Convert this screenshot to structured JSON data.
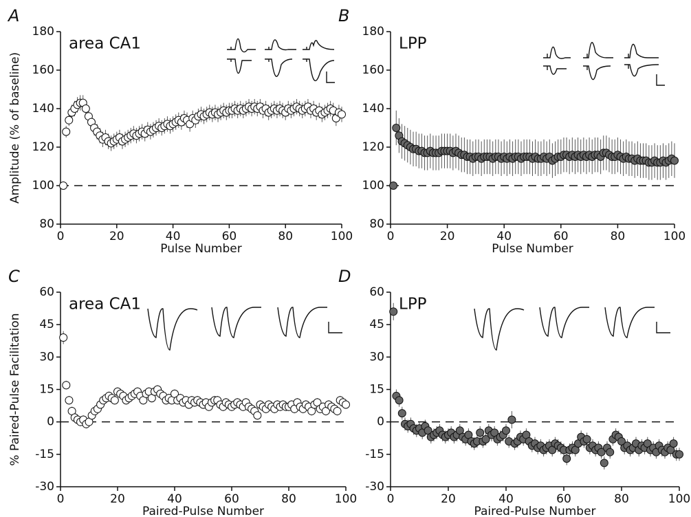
{
  "chart_data": [
    {
      "type": "scatter",
      "panel_label": "A",
      "title": "area CA1",
      "xlabel": "Pulse Number",
      "ylabel": "Amplitude (% of baseline)",
      "xlim": [
        0,
        100
      ],
      "xticks": [
        0,
        20,
        40,
        60,
        80,
        100
      ],
      "ylim": [
        80,
        180
      ],
      "yticks": [
        80,
        100,
        120,
        140,
        160,
        180
      ],
      "reference_line": 100,
      "marker_fill": "#ffffff",
      "marker_edge": "#111111",
      "x": [
        1,
        2,
        3,
        4,
        5,
        6,
        7,
        8,
        9,
        10,
        11,
        12,
        13,
        14,
        15,
        16,
        17,
        18,
        19,
        20,
        21,
        22,
        23,
        24,
        25,
        26,
        27,
        28,
        29,
        30,
        31,
        32,
        33,
        34,
        35,
        36,
        37,
        38,
        39,
        40,
        41,
        42,
        43,
        44,
        45,
        46,
        47,
        48,
        49,
        50,
        51,
        52,
        53,
        54,
        55,
        56,
        57,
        58,
        59,
        60,
        61,
        62,
        63,
        64,
        65,
        66,
        67,
        68,
        69,
        70,
        71,
        72,
        73,
        74,
        75,
        76,
        77,
        78,
        79,
        80,
        81,
        82,
        83,
        84,
        85,
        86,
        87,
        88,
        89,
        90,
        91,
        92,
        93,
        94,
        95,
        96,
        97,
        98,
        99,
        100
      ],
      "values": [
        100,
        128,
        134,
        138,
        140,
        142,
        143,
        143,
        140,
        136,
        133,
        130,
        128,
        126,
        124,
        125,
        123,
        122,
        123,
        124,
        125,
        123,
        124,
        125,
        126,
        127,
        126,
        127,
        128,
        127,
        129,
        128,
        129,
        130,
        131,
        130,
        131,
        132,
        131,
        132,
        133,
        134,
        133,
        135,
        134,
        132,
        135,
        134,
        136,
        137,
        136,
        137,
        138,
        137,
        138,
        137,
        138,
        139,
        138,
        139,
        139,
        140,
        139,
        140,
        139,
        140,
        141,
        140,
        141,
        140,
        141,
        139,
        140,
        138,
        139,
        140,
        139,
        140,
        139,
        138,
        140,
        139,
        140,
        141,
        140,
        139,
        140,
        141,
        139,
        140,
        138,
        139,
        137,
        138,
        139,
        140,
        139,
        135,
        138,
        137
      ],
      "errors": [
        0,
        3,
        3,
        4,
        4,
        4,
        4,
        4,
        4,
        4,
        4,
        4,
        4,
        4,
        4,
        4,
        4,
        4,
        4,
        4,
        4,
        4,
        4,
        4,
        4,
        4,
        4,
        4,
        4,
        4,
        4,
        4,
        4,
        4,
        4,
        4,
        4,
        4,
        4,
        4,
        4,
        4,
        4,
        4,
        4,
        4,
        4,
        4,
        4,
        4,
        4,
        4,
        4,
        4,
        4,
        4,
        4,
        4,
        4,
        4,
        4,
        4,
        4,
        4,
        4,
        4,
        4,
        4,
        4,
        4,
        4,
        4,
        4,
        4,
        4,
        4,
        4,
        4,
        4,
        4,
        4,
        4,
        4,
        4,
        4,
        4,
        4,
        4,
        4,
        4,
        4,
        4,
        4,
        4,
        4,
        4,
        4,
        4,
        4,
        4
      ]
    },
    {
      "type": "scatter",
      "panel_label": "B",
      "title": "LPP",
      "xlabel": "Pulse Number",
      "xlim": [
        0,
        100
      ],
      "xticks": [
        0,
        20,
        40,
        60,
        80,
        100
      ],
      "ylim": [
        80,
        180
      ],
      "yticks": [
        80,
        100,
        120,
        140,
        160,
        180
      ],
      "reference_line": 100,
      "marker_fill": "#666666",
      "marker_edge": "#111111",
      "x": [
        1,
        2,
        3,
        4,
        5,
        6,
        7,
        8,
        9,
        10,
        11,
        12,
        13,
        14,
        15,
        16,
        17,
        18,
        19,
        20,
        21,
        22,
        23,
        24,
        25,
        26,
        27,
        28,
        29,
        30,
        31,
        32,
        33,
        34,
        35,
        36,
        37,
        38,
        39,
        40,
        41,
        42,
        43,
        44,
        45,
        46,
        47,
        48,
        49,
        50,
        51,
        52,
        53,
        54,
        55,
        56,
        57,
        58,
        59,
        60,
        61,
        62,
        63,
        64,
        65,
        66,
        67,
        68,
        69,
        70,
        71,
        72,
        73,
        74,
        75,
        76,
        77,
        78,
        79,
        80,
        81,
        82,
        83,
        84,
        85,
        86,
        87,
        88,
        89,
        90,
        91,
        92,
        93,
        94,
        95,
        96,
        97,
        98,
        99,
        100
      ],
      "values": [
        100,
        130,
        126,
        123,
        122,
        121,
        120,
        119,
        119,
        118,
        118,
        117,
        117,
        118,
        117,
        117,
        117,
        118,
        118,
        118,
        118,
        117,
        118,
        117,
        116,
        116,
        115,
        115,
        114,
        115,
        115,
        114,
        115,
        115,
        115,
        114,
        115,
        115,
        114,
        115,
        114,
        115,
        114,
        115,
        115,
        114,
        115,
        115,
        115,
        114,
        115,
        114,
        114,
        115,
        114,
        115,
        113,
        114,
        115,
        115,
        116,
        116,
        115,
        116,
        115,
        116,
        115,
        116,
        115,
        116,
        115,
        116,
        116,
        115,
        117,
        117,
        116,
        115,
        115,
        116,
        115,
        114,
        115,
        114,
        114,
        113,
        114,
        113,
        113,
        113,
        112,
        112,
        113,
        112,
        112,
        113,
        112,
        113,
        114,
        113
      ],
      "errors": [
        0,
        9,
        9,
        9,
        9,
        9,
        9,
        9,
        9,
        9,
        9,
        9,
        9,
        9,
        9,
        9,
        9,
        9,
        9,
        9,
        9,
        9,
        9,
        9,
        9,
        9,
        9,
        9,
        9,
        9,
        9,
        9,
        9,
        9,
        9,
        9,
        9,
        9,
        9,
        9,
        9,
        9,
        9,
        9,
        9,
        9,
        9,
        9,
        9,
        9,
        9,
        9,
        9,
        9,
        9,
        9,
        9,
        9,
        9,
        9,
        9,
        9,
        9,
        9,
        9,
        9,
        9,
        9,
        9,
        9,
        9,
        9,
        9,
        9,
        9,
        9,
        9,
        9,
        9,
        9,
        9,
        9,
        9,
        9,
        9,
        9,
        9,
        9,
        9,
        9,
        9,
        9,
        9,
        9,
        9,
        9,
        9,
        9,
        9,
        9
      ]
    },
    {
      "type": "scatter",
      "panel_label": "C",
      "title": "area CA1",
      "xlabel": "Paired-Pulse Number",
      "ylabel": "% Paired-Pulse Facilitation",
      "xlim": [
        0,
        100
      ],
      "xticks": [
        0,
        20,
        40,
        60,
        80,
        100
      ],
      "ylim": [
        -30,
        60
      ],
      "yticks": [
        -30,
        -15,
        0,
        15,
        30,
        45,
        60
      ],
      "reference_line": 0,
      "marker_fill": "#ffffff",
      "marker_edge": "#111111",
      "x": [
        1,
        2,
        3,
        4,
        5,
        6,
        7,
        8,
        9,
        10,
        11,
        12,
        13,
        14,
        15,
        16,
        17,
        18,
        19,
        20,
        21,
        22,
        23,
        24,
        25,
        26,
        27,
        28,
        29,
        30,
        31,
        32,
        33,
        34,
        35,
        36,
        37,
        38,
        39,
        40,
        41,
        42,
        43,
        44,
        45,
        46,
        47,
        48,
        49,
        50,
        51,
        52,
        53,
        54,
        55,
        56,
        57,
        58,
        59,
        60,
        61,
        62,
        63,
        64,
        65,
        66,
        67,
        68,
        69,
        70,
        71,
        72,
        73,
        74,
        75,
        76,
        77,
        78,
        79,
        80,
        81,
        82,
        83,
        84,
        85,
        86,
        87,
        88,
        89,
        90,
        91,
        92,
        93,
        94,
        95,
        96,
        97,
        98,
        99,
        100
      ],
      "values": [
        39,
        17,
        10,
        5,
        2,
        1,
        0,
        1,
        -1,
        0,
        3,
        5,
        6,
        8,
        10,
        11,
        12,
        11,
        10,
        14,
        13,
        12,
        10,
        11,
        12,
        13,
        14,
        12,
        10,
        13,
        14,
        11,
        14,
        15,
        13,
        12,
        10,
        11,
        10,
        13,
        10,
        11,
        9,
        10,
        8,
        10,
        9,
        10,
        9,
        8,
        9,
        7,
        9,
        10,
        10,
        8,
        7,
        9,
        8,
        7,
        8,
        9,
        8,
        7,
        9,
        7,
        6,
        5,
        3,
        8,
        7,
        6,
        8,
        7,
        6,
        8,
        7,
        8,
        7,
        7,
        8,
        6,
        9,
        7,
        6,
        8,
        7,
        5,
        8,
        9,
        6,
        7,
        5,
        8,
        7,
        6,
        5,
        10,
        9,
        8
      ],
      "errors": [
        3,
        2,
        2,
        2,
        2,
        2,
        2,
        2,
        2,
        2,
        2,
        2,
        2,
        2,
        2,
        2,
        2,
        2,
        2,
        2,
        2,
        2,
        2,
        2,
        2,
        2,
        2,
        2,
        2,
        2,
        2,
        2,
        2,
        2,
        2,
        2,
        2,
        2,
        2,
        2,
        2,
        2,
        2,
        2,
        2,
        2,
        2,
        2,
        2,
        2,
        2,
        2,
        2,
        2,
        2,
        2,
        2,
        2,
        2,
        2,
        2,
        2,
        2,
        2,
        2,
        2,
        2,
        2,
        2,
        2,
        2,
        2,
        2,
        2,
        2,
        2,
        2,
        2,
        2,
        2,
        2,
        2,
        2,
        2,
        2,
        2,
        2,
        2,
        2,
        2,
        2,
        2,
        2,
        2,
        2,
        2,
        2,
        2,
        2,
        2
      ]
    },
    {
      "type": "scatter",
      "panel_label": "D",
      "title": "LPP",
      "xlabel": "Paired-Pulse Number",
      "xlim": [
        0,
        100
      ],
      "xticks": [
        0,
        20,
        40,
        60,
        80,
        100
      ],
      "ylim": [
        -30,
        60
      ],
      "yticks": [
        -30,
        -15,
        0,
        15,
        30,
        45,
        60
      ],
      "reference_line": 0,
      "marker_fill": "#666666",
      "marker_edge": "#111111",
      "x": [
        1,
        2,
        3,
        4,
        5,
        6,
        7,
        8,
        9,
        10,
        11,
        12,
        13,
        14,
        15,
        16,
        17,
        18,
        19,
        20,
        21,
        22,
        23,
        24,
        25,
        26,
        27,
        28,
        29,
        30,
        31,
        32,
        33,
        34,
        35,
        36,
        37,
        38,
        39,
        40,
        41,
        42,
        43,
        44,
        45,
        46,
        47,
        48,
        49,
        50,
        51,
        52,
        53,
        54,
        55,
        56,
        57,
        58,
        59,
        60,
        61,
        62,
        63,
        64,
        65,
        66,
        67,
        68,
        69,
        70,
        71,
        72,
        73,
        74,
        75,
        76,
        77,
        78,
        79,
        80,
        81,
        82,
        83,
        84,
        85,
        86,
        87,
        88,
        89,
        90,
        91,
        92,
        93,
        94,
        95,
        96,
        97,
        98,
        99,
        100
      ],
      "values": [
        51,
        12,
        10,
        4,
        -1,
        -2,
        -1,
        -3,
        -4,
        -3,
        -5,
        -2,
        -4,
        -7,
        -6,
        -5,
        -4,
        -6,
        -7,
        -6,
        -5,
        -7,
        -6,
        -4,
        -7,
        -8,
        -6,
        -9,
        -10,
        -9,
        -5,
        -9,
        -8,
        -4,
        -6,
        -5,
        -8,
        -7,
        -6,
        -4,
        -9,
        1,
        -10,
        -9,
        -7,
        -8,
        -6,
        -9,
        -11,
        -10,
        -12,
        -11,
        -13,
        -12,
        -11,
        -13,
        -10,
        -11,
        -12,
        -13,
        -17,
        -13,
        -12,
        -13,
        -10,
        -7,
        -9,
        -8,
        -12,
        -11,
        -13,
        -12,
        -14,
        -19,
        -12,
        -14,
        -8,
        -6,
        -7,
        -9,
        -12,
        -11,
        -13,
        -12,
        -10,
        -13,
        -11,
        -12,
        -10,
        -13,
        -12,
        -14,
        -11,
        -13,
        -14,
        -12,
        -13,
        -10,
        -15,
        -15
      ],
      "errors": [
        4,
        3,
        3,
        3,
        3,
        3,
        3,
        3,
        3,
        3,
        3,
        3,
        3,
        3,
        3,
        3,
        3,
        3,
        3,
        3,
        3,
        3,
        3,
        3,
        3,
        3,
        3,
        3,
        3,
        3,
        3,
        3,
        3,
        3,
        3,
        3,
        3,
        3,
        3,
        3,
        3,
        4,
        3,
        3,
        3,
        3,
        3,
        3,
        3,
        3,
        3,
        3,
        3,
        3,
        3,
        3,
        3,
        3,
        3,
        3,
        3,
        3,
        3,
        3,
        3,
        3,
        3,
        3,
        3,
        3,
        3,
        3,
        3,
        3,
        3,
        3,
        3,
        3,
        3,
        3,
        3,
        3,
        3,
        3,
        3,
        3,
        3,
        3,
        3,
        3,
        3,
        3,
        3,
        3,
        3,
        3,
        3,
        3,
        3,
        3
      ]
    }
  ]
}
